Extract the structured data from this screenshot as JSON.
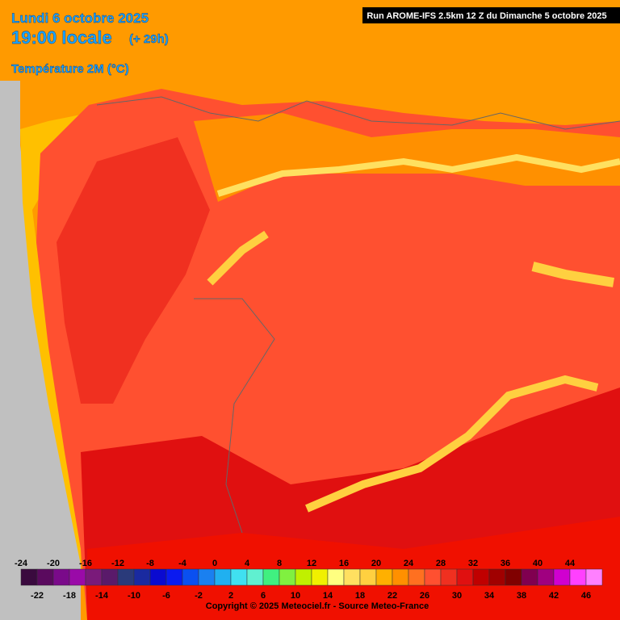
{
  "header": {
    "date": "Lundi 6 octobre 2025",
    "time": "19:00 locale",
    "offset": "(+ 29h)",
    "parameter": "Température 2M (°C)",
    "run": "Run AROME-IFS 2.5km 12 Z du Dimanche 5 octobre 2025"
  },
  "legend": {
    "steps": [
      {
        "value": -24,
        "color": "#3a0a3e"
      },
      {
        "value": -22,
        "color": "#5a0a5e"
      },
      {
        "value": -20,
        "color": "#7a0a8a"
      },
      {
        "value": -18,
        "color": "#9a0aa8"
      },
      {
        "value": -16,
        "color": "#7a1a7a"
      },
      {
        "value": -14,
        "color": "#5a1a6a"
      },
      {
        "value": -12,
        "color": "#2a3a7a"
      },
      {
        "value": -10,
        "color": "#1a2aa0"
      },
      {
        "value": -8,
        "color": "#0a0ad0"
      },
      {
        "value": -6,
        "color": "#0a1af0"
      },
      {
        "value": -4,
        "color": "#0a50f0"
      },
      {
        "value": -2,
        "color": "#1a80f0"
      },
      {
        "value": 0,
        "color": "#20b0f0"
      },
      {
        "value": 2,
        "color": "#40e0f0"
      },
      {
        "value": 4,
        "color": "#60f0d0"
      },
      {
        "value": 6,
        "color": "#40f080"
      },
      {
        "value": 8,
        "color": "#80f040"
      },
      {
        "value": 10,
        "color": "#c0f000"
      },
      {
        "value": 12,
        "color": "#f0f000"
      },
      {
        "value": 14,
        "color": "#ffff80"
      },
      {
        "value": 16,
        "color": "#ffe060"
      },
      {
        "value": 18,
        "color": "#ffd040"
      },
      {
        "value": 20,
        "color": "#ffb000"
      },
      {
        "value": 22,
        "color": "#ff9000"
      },
      {
        "value": 24,
        "color": "#ff7020"
      },
      {
        "value": 26,
        "color": "#ff5030"
      },
      {
        "value": 28,
        "color": "#f03020"
      },
      {
        "value": 30,
        "color": "#e01010"
      },
      {
        "value": 32,
        "color": "#c00000"
      },
      {
        "value": 34,
        "color": "#a00000"
      },
      {
        "value": 36,
        "color": "#800000"
      },
      {
        "value": 38,
        "color": "#800050"
      },
      {
        "value": 40,
        "color": "#a00080"
      },
      {
        "value": 42,
        "color": "#d000d0"
      },
      {
        "value": 44,
        "color": "#ff40ff"
      },
      {
        "value": 46,
        "color": "#ff80ff"
      }
    ]
  },
  "footer": {
    "copyright": "Copyright © 2025 Meteociel.fr - Source Meteo-France"
  }
}
